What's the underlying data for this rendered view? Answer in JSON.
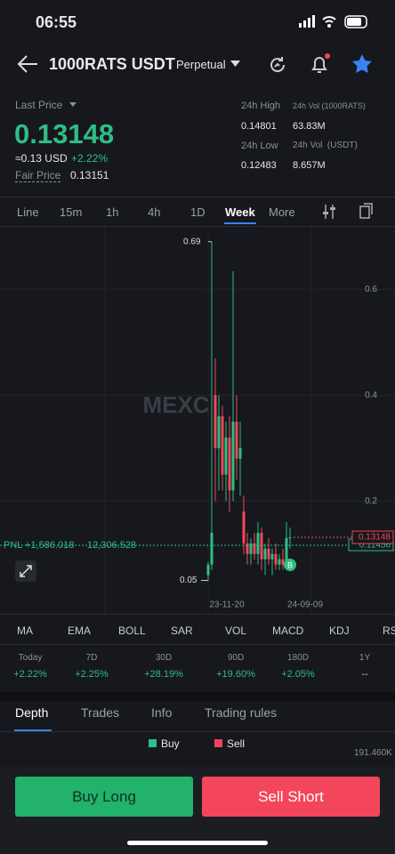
{
  "status": {
    "time": "06:55"
  },
  "header": {
    "symbol": "1000RATS USDT",
    "contract": "Perpetual"
  },
  "price": {
    "label": "Last Price",
    "last": "0.13148",
    "usd": "≈0.13 USD",
    "change": "+2.22%",
    "fair_label": "Fair Price",
    "fair": "0.13151"
  },
  "stats": [
    {
      "label": "24h High",
      "value": "0.14801"
    },
    {
      "label": "24h Vol (1000RATS)",
      "value": "63.83M"
    },
    {
      "label": "24h Low",
      "value": "0.12483"
    },
    {
      "label": "24h Vol  (USDT)",
      "value": "8.657M"
    }
  ],
  "intervals": [
    "Line",
    "15m",
    "1h",
    "4h",
    "1D",
    "Week",
    "More"
  ],
  "chart": {
    "type": "candlestick",
    "watermark": "MEXC",
    "ylim": [
      -0.013,
      0.718
    ],
    "yticks": [
      0.2,
      0.4,
      0.6
    ],
    "open": [
      0.06,
      0.08,
      0.4,
      0.3,
      0.36,
      0.25,
      0.32,
      0.22,
      0.35,
      0.28,
      0.18,
      0.12,
      0.1,
      0.12,
      0.1,
      0.14,
      0.09,
      0.11,
      0.09,
      0.1,
      0.08,
      0.09,
      0.08,
      0.13
    ],
    "high": [
      0.085,
      0.69,
      0.47,
      0.4,
      0.38,
      0.35,
      0.36,
      0.634,
      0.4,
      0.35,
      0.21,
      0.14,
      0.13,
      0.14,
      0.16,
      0.15,
      0.12,
      0.13,
      0.11,
      0.12,
      0.1,
      0.11,
      0.16,
      0.15
    ],
    "low": [
      0.05,
      0.07,
      0.2,
      0.22,
      0.22,
      0.2,
      0.18,
      0.2,
      0.24,
      0.21,
      0.1,
      0.08,
      0.08,
      0.09,
      0.08,
      0.07,
      0.06,
      0.08,
      0.06,
      0.07,
      0.07,
      0.07,
      0.08,
      0.11
    ],
    "close": [
      0.08,
      0.14,
      0.3,
      0.36,
      0.25,
      0.32,
      0.22,
      0.35,
      0.28,
      0.3,
      0.12,
      0.1,
      0.12,
      0.1,
      0.14,
      0.09,
      0.11,
      0.09,
      0.1,
      0.08,
      0.09,
      0.08,
      0.13,
      0.13148
    ],
    "x_labels": [
      "23-11-20",
      "24-09-09"
    ],
    "max_label": "0.69",
    "min_label": "0.05",
    "last_price": "0.13148",
    "mark_price": "0.11456",
    "pnl": "PNL +1,586.018",
    "position": "12,306.528",
    "marker": "B"
  },
  "indicators": [
    "MA",
    "EMA",
    "BOLL",
    "SAR",
    "VOL",
    "MACD",
    "KDJ",
    "RSI"
  ],
  "performance": [
    {
      "period": "Today",
      "value": "+2.22%"
    },
    {
      "period": "7D",
      "value": "+2.25%"
    },
    {
      "period": "30D",
      "value": "+28.19%"
    },
    {
      "period": "90D",
      "value": "+19.60%"
    },
    {
      "period": "180D",
      "value": "+2.05%"
    },
    {
      "period": "1Y",
      "value": "--"
    }
  ],
  "tabs": [
    "Depth",
    "Trades",
    "Info",
    "Trading rules"
  ],
  "depth": {
    "buy": "Buy",
    "sell": "Sell",
    "value": "191.460K"
  },
  "actions": {
    "buy": "Buy Long",
    "sell": "Sell Short"
  }
}
